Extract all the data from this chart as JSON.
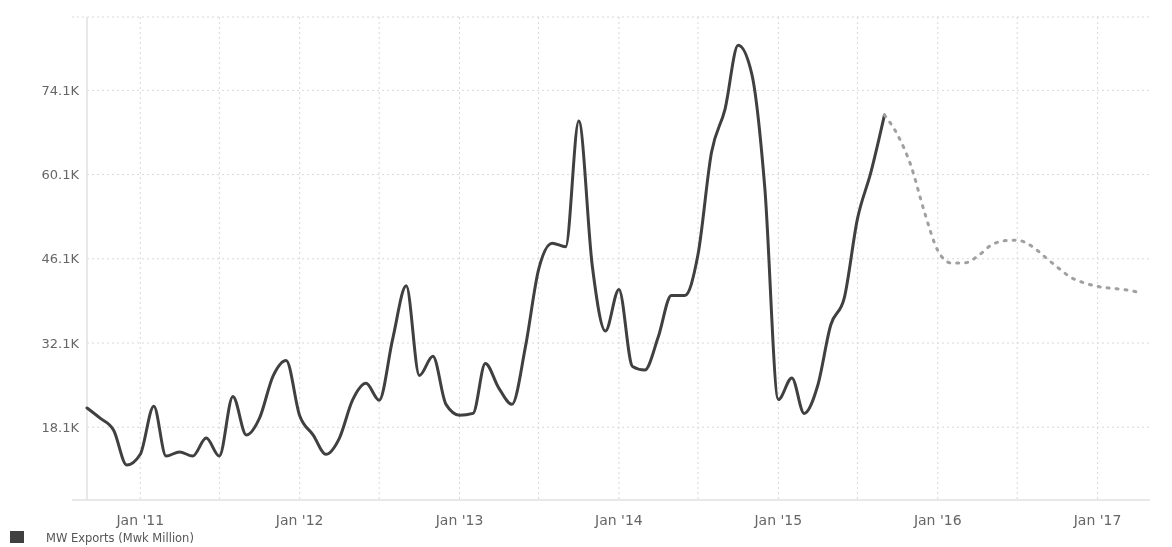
{
  "chart_data": {
    "type": "line",
    "xlim": [
      "2010-09",
      "2017-05"
    ],
    "ylim": [
      6000,
      86300
    ],
    "xticks": [
      {
        "value": "2011-01",
        "label": "Jan '11"
      },
      {
        "value": "2011-07",
        "label": null
      },
      {
        "value": "2012-01",
        "label": "Jan '12"
      },
      {
        "value": "2012-07",
        "label": null
      },
      {
        "value": "2013-01",
        "label": "Jan '13"
      },
      {
        "value": "2013-07",
        "label": null
      },
      {
        "value": "2014-01",
        "label": "Jan '14"
      },
      {
        "value": "2014-07",
        "label": null
      },
      {
        "value": "2015-01",
        "label": "Jan '15"
      },
      {
        "value": "2015-07",
        "label": null
      },
      {
        "value": "2016-01",
        "label": "Jan '16"
      },
      {
        "value": "2016-07",
        "label": null
      },
      {
        "value": "2017-01",
        "label": "Jan '17"
      }
    ],
    "yticks": [
      {
        "value": 18100,
        "label": "18.1K"
      },
      {
        "value": 32100,
        "label": "32.1K"
      },
      {
        "value": 46100,
        "label": "46.1K"
      },
      {
        "value": 60100,
        "label": "60.1K"
      },
      {
        "value": 74100,
        "label": "74.1K"
      }
    ],
    "grid": true,
    "legend": "bottom left",
    "series": [
      {
        "name": "MW Exports (Mwk Million)",
        "color": "#404040",
        "line_style": "solid",
        "x": [
          "2010-09",
          "2010-10",
          "2010-11",
          "2010-12",
          "2011-01",
          "2011-02",
          "2011-03",
          "2011-04",
          "2011-05",
          "2011-06",
          "2011-07",
          "2011-08",
          "2011-09",
          "2011-10",
          "2011-11",
          "2011-12",
          "2012-01",
          "2012-02",
          "2012-03",
          "2012-04",
          "2012-05",
          "2012-06",
          "2012-07",
          "2012-08",
          "2012-09",
          "2012-10",
          "2012-11",
          "2012-12",
          "2013-01",
          "2013-02",
          "2013-03",
          "2013-04",
          "2013-05",
          "2013-06",
          "2013-07",
          "2013-08",
          "2013-09",
          "2013-10",
          "2013-11",
          "2013-12",
          "2014-01",
          "2014-02",
          "2014-03",
          "2014-04",
          "2014-05",
          "2014-06",
          "2014-07",
          "2014-08",
          "2014-09",
          "2014-10",
          "2014-11",
          "2014-12",
          "2015-01",
          "2015-02",
          "2015-03",
          "2015-04",
          "2015-05",
          "2015-06",
          "2015-07",
          "2015-08",
          "2015-09"
        ],
        "values": [
          21300,
          19600,
          17600,
          11800,
          13600,
          21600,
          13300,
          14000,
          13300,
          16300,
          13300,
          23200,
          16800,
          19600,
          26600,
          29200,
          20000,
          16800,
          13600,
          16300,
          22600,
          25400,
          22600,
          32800,
          41600,
          26700,
          29900,
          21900,
          20100,
          20400,
          28700,
          24600,
          21900,
          31500,
          44300,
          48700,
          48100,
          69000,
          44900,
          34100,
          41000,
          28200,
          27600,
          33100,
          40000,
          40000,
          46800,
          63800,
          71000,
          81600,
          76900,
          57900,
          22700,
          26300,
          20400,
          25000,
          35100,
          39600,
          52700,
          60500,
          70000
        ]
      },
      {
        "color": "#a0a0a0",
        "line_style": "dotted",
        "x": [
          "2015-09",
          "2015-10",
          "2015-11",
          "2015-12",
          "2016-01",
          "2016-02",
          "2016-03",
          "2016-04",
          "2016-05",
          "2016-06",
          "2016-07",
          "2016-08",
          "2016-09",
          "2016-10",
          "2016-11",
          "2016-12",
          "2017-01",
          "2017-02",
          "2017-03",
          "2017-04"
        ],
        "values": [
          70000,
          66700,
          61500,
          54000,
          47500,
          45400,
          45400,
          46500,
          48300,
          49100,
          49200,
          48300,
          46500,
          44700,
          43000,
          42100,
          41500,
          41200,
          41000,
          40600
        ]
      }
    ]
  }
}
